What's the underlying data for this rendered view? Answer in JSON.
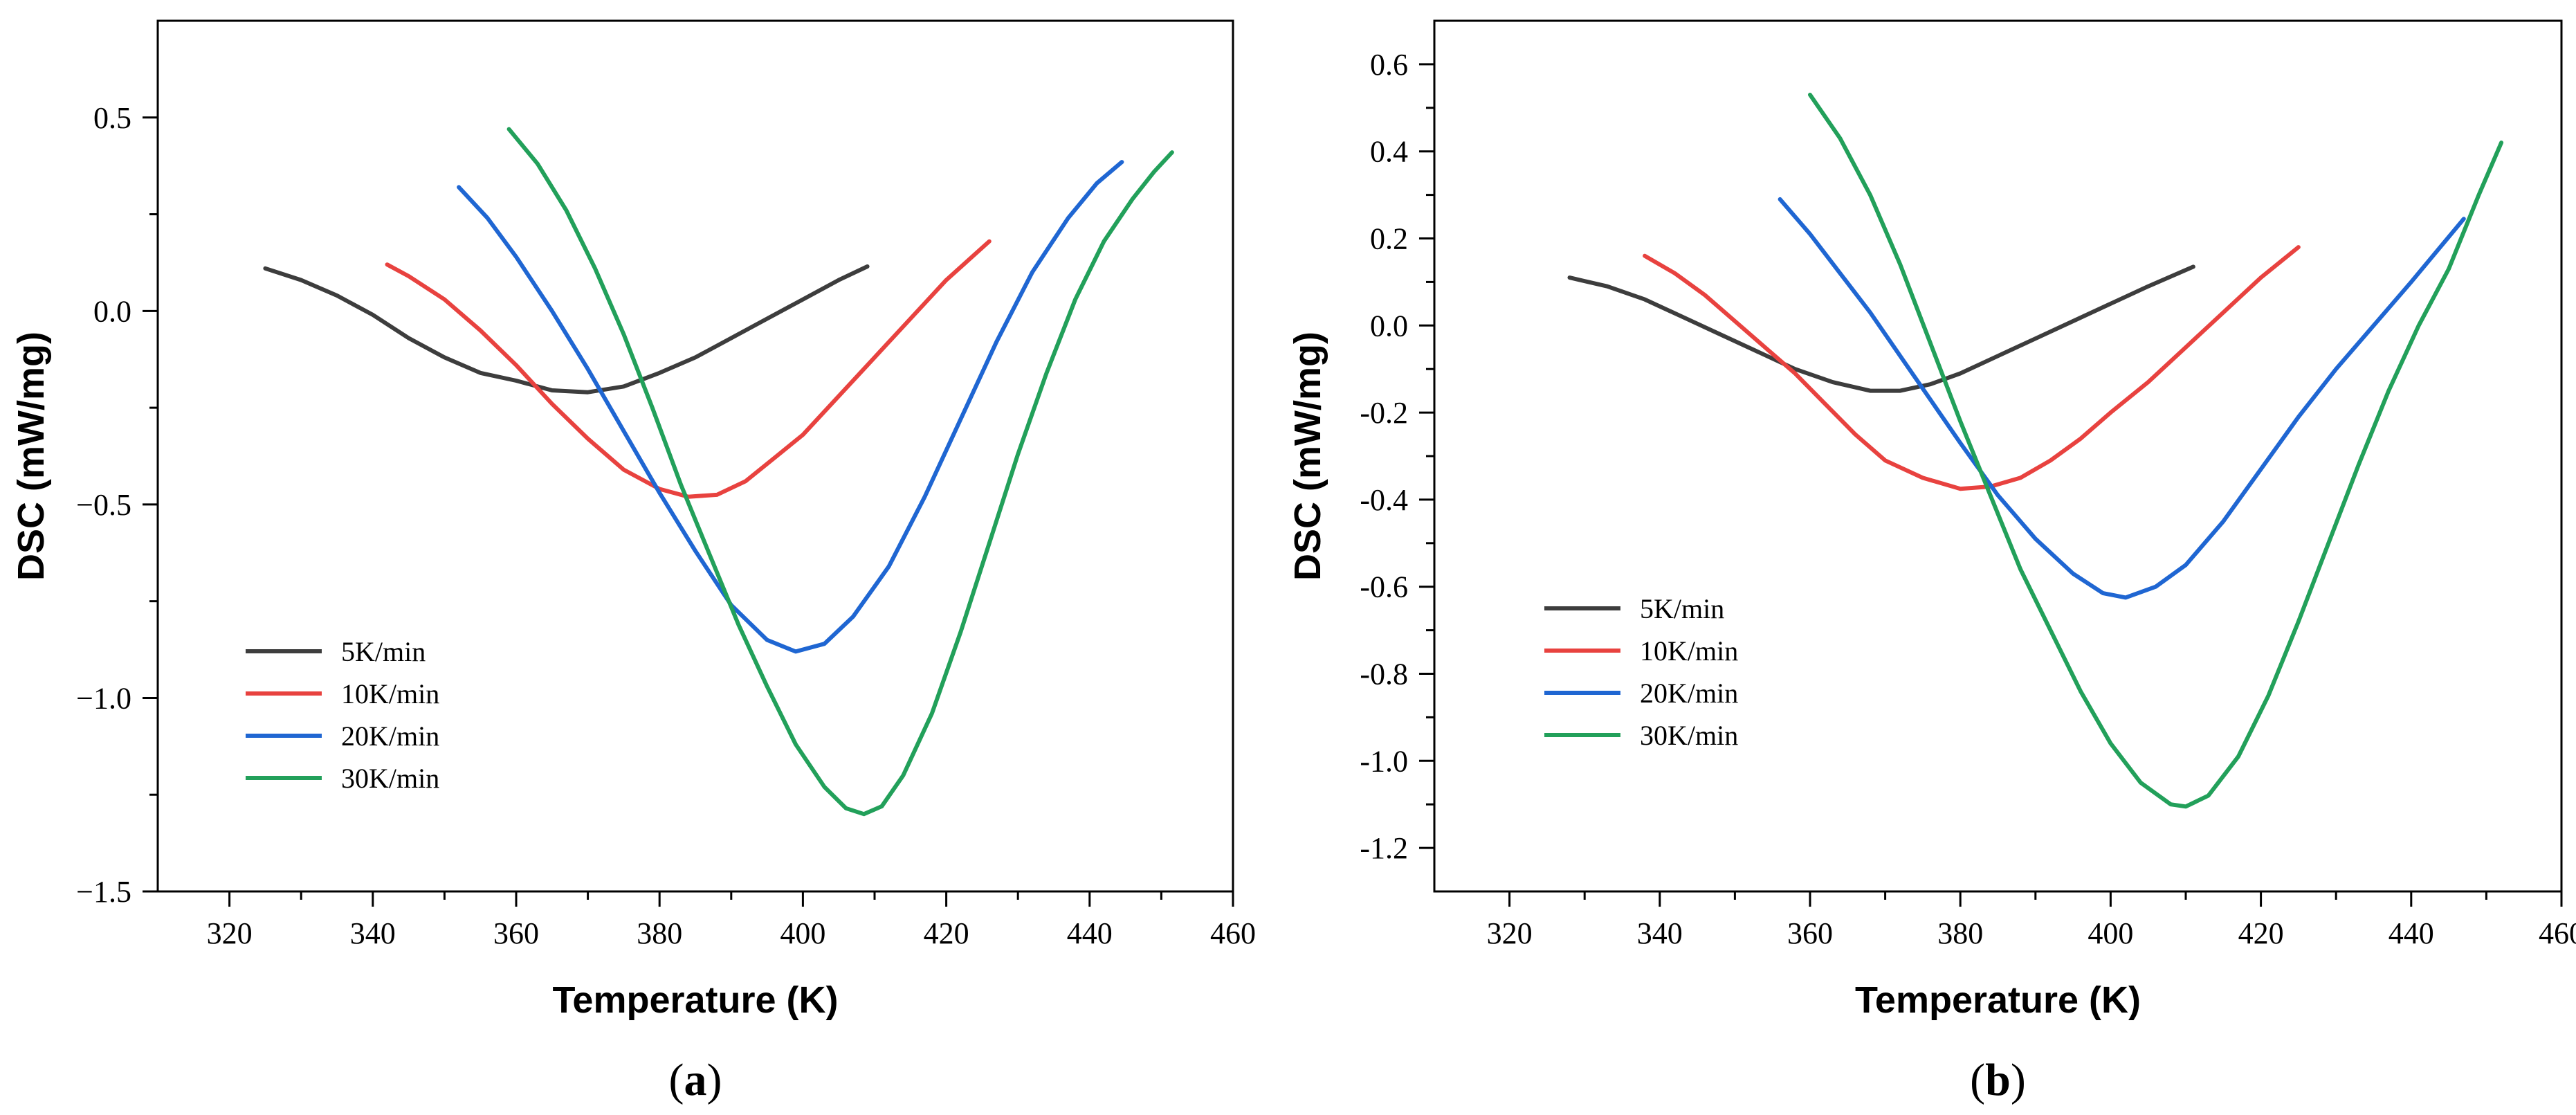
{
  "colors": {
    "5K/min": "#3d3d3d",
    "10K/min": "#e8423f",
    "20K/min": "#1f66d2",
    "30K/min": "#22a05a"
  },
  "chart_data": [
    {
      "type": "line",
      "panel_label": {
        "open": "(",
        "letter": "a",
        "close": ")"
      },
      "xlabel": "Temperature (K)",
      "ylabel": "DSC (mW/mg)",
      "xlim": [
        310,
        460
      ],
      "ylim": [
        -1.5,
        0.75
      ],
      "xticks": [
        320,
        340,
        360,
        380,
        400,
        420,
        440,
        460
      ],
      "xtick_labels": [
        "320",
        "340",
        "360",
        "380",
        "400",
        "420",
        "440",
        "460"
      ],
      "yticks": [
        0.5,
        0.0,
        -0.5,
        -1.0,
        -1.5
      ],
      "ytick_labels": [
        "0.5",
        "0.0",
        "−0.5",
        "−1.0",
        "−1.5"
      ],
      "legend": [
        "5K/min",
        "10K/min",
        "20K/min",
        "30K/min"
      ],
      "series": [
        {
          "name": "5K/min",
          "points": [
            [
              325,
              0.11
            ],
            [
              330,
              0.08
            ],
            [
              335,
              0.04
            ],
            [
              340,
              -0.01
            ],
            [
              345,
              -0.07
            ],
            [
              350,
              -0.12
            ],
            [
              355,
              -0.16
            ],
            [
              360,
              -0.18
            ],
            [
              365,
              -0.205
            ],
            [
              370,
              -0.21
            ],
            [
              375,
              -0.195
            ],
            [
              380,
              -0.16
            ],
            [
              385,
              -0.12
            ],
            [
              390,
              -0.07
            ],
            [
              395,
              -0.02
            ],
            [
              400,
              0.03
            ],
            [
              405,
              0.08
            ],
            [
              409,
              0.115
            ]
          ]
        },
        {
          "name": "10K/min",
          "points": [
            [
              342,
              0.12
            ],
            [
              345,
              0.09
            ],
            [
              350,
              0.03
            ],
            [
              355,
              -0.05
            ],
            [
              360,
              -0.14
            ],
            [
              365,
              -0.24
            ],
            [
              370,
              -0.33
            ],
            [
              375,
              -0.41
            ],
            [
              380,
              -0.46
            ],
            [
              384,
              -0.48
            ],
            [
              388,
              -0.475
            ],
            [
              392,
              -0.44
            ],
            [
              396,
              -0.38
            ],
            [
              400,
              -0.32
            ],
            [
              405,
              -0.22
            ],
            [
              410,
              -0.12
            ],
            [
              415,
              -0.02
            ],
            [
              420,
              0.08
            ],
            [
              426,
              0.18
            ]
          ]
        },
        {
          "name": "20K/min",
          "points": [
            [
              352,
              0.32
            ],
            [
              356,
              0.24
            ],
            [
              360,
              0.14
            ],
            [
              365,
              0.0
            ],
            [
              370,
              -0.15
            ],
            [
              375,
              -0.31
            ],
            [
              380,
              -0.47
            ],
            [
              385,
              -0.62
            ],
            [
              390,
              -0.76
            ],
            [
              395,
              -0.85
            ],
            [
              399,
              -0.88
            ],
            [
              403,
              -0.86
            ],
            [
              407,
              -0.79
            ],
            [
              412,
              -0.66
            ],
            [
              417,
              -0.48
            ],
            [
              422,
              -0.28
            ],
            [
              427,
              -0.08
            ],
            [
              432,
              0.1
            ],
            [
              437,
              0.24
            ],
            [
              441,
              0.33
            ],
            [
              444.5,
              0.385
            ]
          ]
        },
        {
          "name": "30K/min",
          "points": [
            [
              359,
              0.47
            ],
            [
              363,
              0.38
            ],
            [
              367,
              0.26
            ],
            [
              371,
              0.11
            ],
            [
              375,
              -0.06
            ],
            [
              379,
              -0.25
            ],
            [
              383,
              -0.45
            ],
            [
              387,
              -0.63
            ],
            [
              391,
              -0.81
            ],
            [
              395,
              -0.97
            ],
            [
              399,
              -1.12
            ],
            [
              403,
              -1.23
            ],
            [
              406,
              -1.285
            ],
            [
              408.5,
              -1.3
            ],
            [
              411,
              -1.28
            ],
            [
              414,
              -1.2
            ],
            [
              418,
              -1.04
            ],
            [
              422,
              -0.83
            ],
            [
              426,
              -0.6
            ],
            [
              430,
              -0.37
            ],
            [
              434,
              -0.16
            ],
            [
              438,
              0.03
            ],
            [
              442,
              0.18
            ],
            [
              446,
              0.29
            ],
            [
              449,
              0.36
            ],
            [
              451.5,
              0.41
            ]
          ]
        }
      ]
    },
    {
      "type": "line",
      "panel_label": {
        "open": "(",
        "letter": "b",
        "close": ")"
      },
      "xlabel": "Temperature (K)",
      "ylabel": "DSC (mW/mg)",
      "xlim": [
        310,
        460
      ],
      "ylim": [
        -1.3,
        0.7
      ],
      "xticks": [
        320,
        340,
        360,
        380,
        400,
        420,
        440,
        460
      ],
      "xtick_labels": [
        "320",
        "340",
        "360",
        "380",
        "400",
        "420",
        "440",
        "460"
      ],
      "yticks": [
        0.6,
        0.4,
        0.2,
        0.0,
        -0.2,
        -0.4,
        -0.6,
        -0.8,
        -1.0,
        -1.2
      ],
      "ytick_labels": [
        "0.6",
        "0.4",
        "0.2",
        "0.0",
        "-0.2",
        "-0.4",
        "-0.6",
        "-0.8",
        "-1.0",
        "-1.2"
      ],
      "legend": [
        "5K/min",
        "10K/min",
        "20K/min",
        "30K/min"
      ],
      "series": [
        {
          "name": "5K/min",
          "points": [
            [
              328,
              0.11
            ],
            [
              333,
              0.09
            ],
            [
              338,
              0.06
            ],
            [
              343,
              0.02
            ],
            [
              348,
              -0.02
            ],
            [
              353,
              -0.06
            ],
            [
              358,
              -0.1
            ],
            [
              363,
              -0.13
            ],
            [
              368,
              -0.15
            ],
            [
              372,
              -0.15
            ],
            [
              376,
              -0.135
            ],
            [
              380,
              -0.11
            ],
            [
              385,
              -0.07
            ],
            [
              390,
              -0.03
            ],
            [
              395,
              0.01
            ],
            [
              400,
              0.05
            ],
            [
              405,
              0.09
            ],
            [
              411,
              0.135
            ]
          ]
        },
        {
          "name": "10K/min",
          "points": [
            [
              338,
              0.16
            ],
            [
              342,
              0.12
            ],
            [
              346,
              0.07
            ],
            [
              350,
              0.01
            ],
            [
              354,
              -0.05
            ],
            [
              358,
              -0.11
            ],
            [
              362,
              -0.18
            ],
            [
              366,
              -0.25
            ],
            [
              370,
              -0.31
            ],
            [
              375,
              -0.35
            ],
            [
              380,
              -0.375
            ],
            [
              384,
              -0.37
            ],
            [
              388,
              -0.35
            ],
            [
              392,
              -0.31
            ],
            [
              396,
              -0.26
            ],
            [
              400,
              -0.2
            ],
            [
              405,
              -0.13
            ],
            [
              410,
              -0.05
            ],
            [
              415,
              0.03
            ],
            [
              420,
              0.11
            ],
            [
              425,
              0.18
            ]
          ]
        },
        {
          "name": "20K/min",
          "points": [
            [
              356,
              0.29
            ],
            [
              360,
              0.21
            ],
            [
              364,
              0.12
            ],
            [
              368,
              0.03
            ],
            [
              372,
              -0.07
            ],
            [
              376,
              -0.17
            ],
            [
              380,
              -0.27
            ],
            [
              385,
              -0.39
            ],
            [
              390,
              -0.49
            ],
            [
              395,
              -0.57
            ],
            [
              399,
              -0.615
            ],
            [
              402,
              -0.625
            ],
            [
              406,
              -0.6
            ],
            [
              410,
              -0.55
            ],
            [
              415,
              -0.45
            ],
            [
              420,
              -0.33
            ],
            [
              425,
              -0.21
            ],
            [
              430,
              -0.1
            ],
            [
              435,
              0.0
            ],
            [
              440,
              0.1
            ],
            [
              447,
              0.245
            ]
          ]
        },
        {
          "name": "30K/min",
          "points": [
            [
              360,
              0.53
            ],
            [
              364,
              0.43
            ],
            [
              368,
              0.3
            ],
            [
              372,
              0.14
            ],
            [
              376,
              -0.04
            ],
            [
              380,
              -0.22
            ],
            [
              384,
              -0.39
            ],
            [
              388,
              -0.56
            ],
            [
              392,
              -0.7
            ],
            [
              396,
              -0.84
            ],
            [
              400,
              -0.96
            ],
            [
              404,
              -1.05
            ],
            [
              408,
              -1.1
            ],
            [
              410,
              -1.105
            ],
            [
              413,
              -1.08
            ],
            [
              417,
              -0.99
            ],
            [
              421,
              -0.85
            ],
            [
              425,
              -0.68
            ],
            [
              429,
              -0.5
            ],
            [
              433,
              -0.32
            ],
            [
              437,
              -0.15
            ],
            [
              441,
              0.0
            ],
            [
              445,
              0.13
            ],
            [
              449,
              0.3
            ],
            [
              452,
              0.42
            ]
          ]
        }
      ]
    }
  ]
}
